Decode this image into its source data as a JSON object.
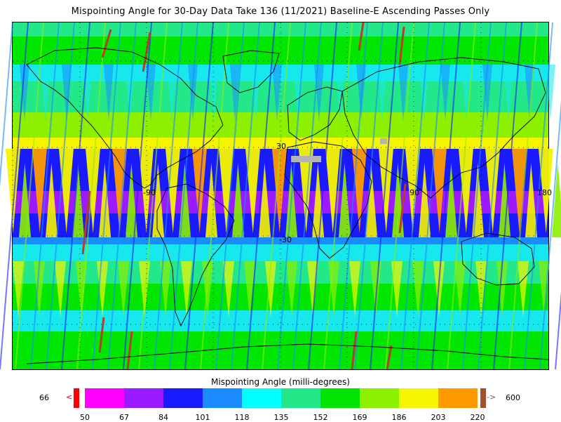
{
  "title": "Mispointing Angle for 30-Day Data Take 136 (11/2021) Baseline-E Ascending Passes Only",
  "map": {
    "lat_labels": [
      "30",
      "-30"
    ],
    "lon_labels": [
      "-90",
      "90",
      "180"
    ],
    "palette": {
      "band_bg": "#17e8ee",
      "bright_green": "#00e600",
      "sea_green": "#23e88a",
      "light_green": "#8cf000",
      "yellow": "#f5f500",
      "orange": "#ff9b00",
      "blue": "#1a1aff",
      "purple": "#9b1aff",
      "sky": "#1a8cff",
      "swath_red": "#b0402a",
      "gray": "#b4b4b4"
    }
  },
  "colorbar": {
    "title": "Mispointing Angle (milli-degrees)",
    "under_value": "66",
    "over_value": "600",
    "under_arrow": "<",
    "over_arrow": "->",
    "under_color": "#ff0000",
    "over_color": "#a0522d",
    "colors": [
      "#ff00ff",
      "#9b1aff",
      "#1a1aff",
      "#1a8cff",
      "#00ffff",
      "#23e88a",
      "#00e600",
      "#8cf000",
      "#f5f500",
      "#ff9b00"
    ],
    "ticks": [
      "50",
      "67",
      "84",
      "101",
      "118",
      "135",
      "152",
      "169",
      "186",
      "203",
      "220"
    ]
  }
}
